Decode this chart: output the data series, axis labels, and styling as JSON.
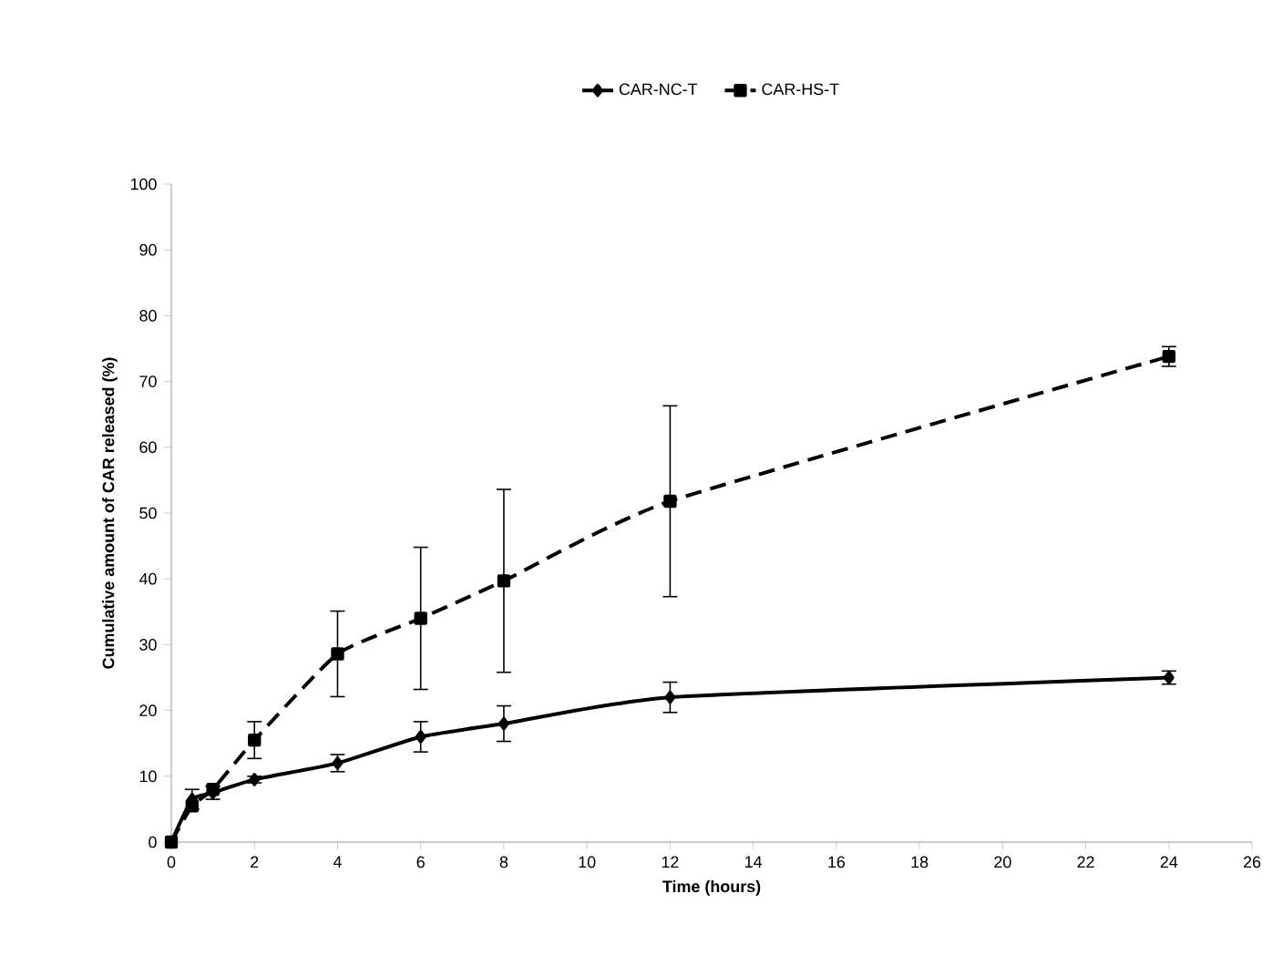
{
  "chart_data": {
    "type": "line",
    "xlabel": "Time (hours)",
    "ylabel": "Cumulative amount of CAR  released (%)",
    "x": [
      0,
      0.5,
      1,
      2,
      4,
      6,
      8,
      12,
      24
    ],
    "series": [
      {
        "name": "CAR-NC-T",
        "color": "#000000",
        "marker": "diamond",
        "line_style": "solid",
        "values": [
          0,
          6.5,
          7.5,
          9.5,
          12,
          16,
          18,
          22,
          25
        ],
        "errors": [
          null,
          1.5,
          1,
          0.5,
          1.3,
          2.3,
          2.7,
          2.3,
          1
        ]
      },
      {
        "name": "CAR-HS-T",
        "color": "#000000",
        "marker": "square",
        "line_style": "dashed",
        "values": [
          0,
          5.5,
          8,
          15.5,
          28.6,
          34,
          39.7,
          51.8,
          73.8
        ],
        "errors": [
          null,
          null,
          0.5,
          2.8,
          6.5,
          10.8,
          13.9,
          14.5,
          1.5
        ]
      }
    ],
    "xlim": [
      0,
      26
    ],
    "xticks": [
      0,
      2,
      4,
      6,
      8,
      10,
      12,
      14,
      16,
      18,
      20,
      22,
      24,
      26
    ],
    "ylim": [
      0,
      100
    ],
    "yticks": [
      0,
      10,
      20,
      30,
      40,
      50,
      60,
      70,
      80,
      90,
      100
    ],
    "grid": false,
    "legend": "top"
  }
}
